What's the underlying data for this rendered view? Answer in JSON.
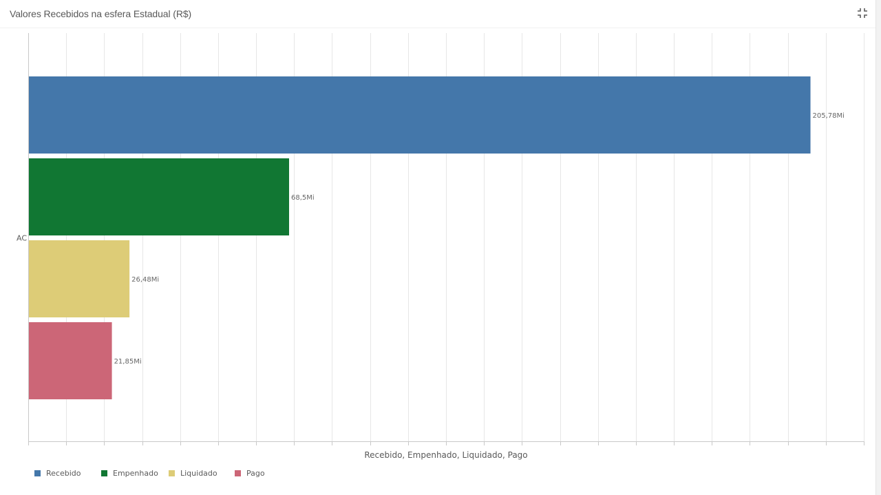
{
  "header": {
    "title": "Valores Recebidos na esfera Estadual (R$)",
    "exit_icon": "exit-fullscreen-icon"
  },
  "chart_data": {
    "type": "bar",
    "orientation": "horizontal",
    "categories": [
      "AC"
    ],
    "series": [
      {
        "name": "Recebido",
        "values": [
          205.78
        ],
        "label": "205,78Mi",
        "color": "#4477aa"
      },
      {
        "name": "Empenhado",
        "values": [
          68.5
        ],
        "label": "68,5Mi",
        "color": "#117733"
      },
      {
        "name": "Liquidado",
        "values": [
          26.48
        ],
        "label": "26,48Mi",
        "color": "#ddcc77"
      },
      {
        "name": "Pago",
        "values": [
          21.85
        ],
        "label": "21,85Mi",
        "color": "#cc6677"
      }
    ],
    "xlabel": "Recebido, Empenhado, Liquidado, Pago",
    "unit": "Mi",
    "xlim": [
      0,
      220
    ],
    "grid": true,
    "legend": "bottom-left"
  }
}
